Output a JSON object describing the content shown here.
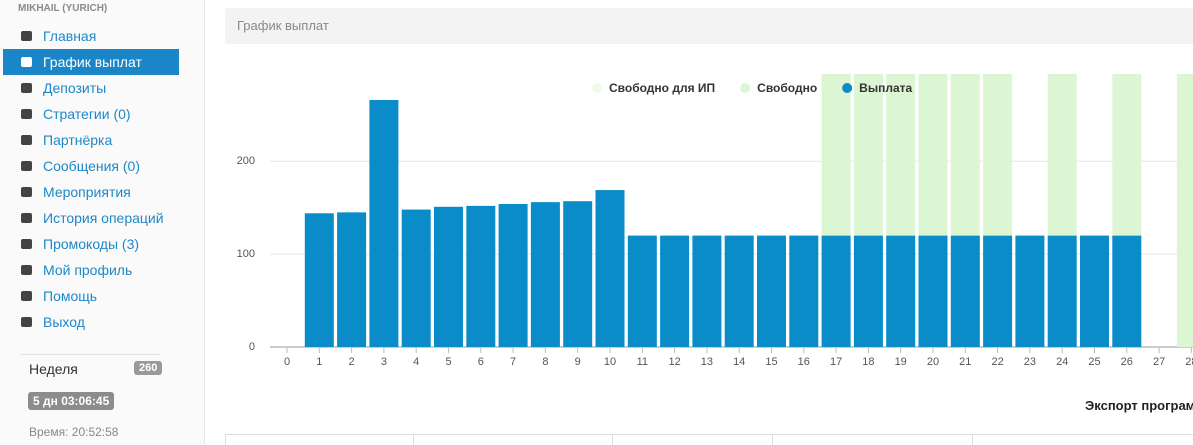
{
  "sidebar": {
    "user": "MIKHAIL (YURICH)",
    "menu": [
      {
        "label": "Главная",
        "active": false
      },
      {
        "label": "График выплат",
        "active": true
      },
      {
        "label": "Депозиты",
        "active": false
      },
      {
        "label": "Стратегии (0)",
        "active": false
      },
      {
        "label": "Партнёрка",
        "active": false
      },
      {
        "label": "Сообщения (0)",
        "active": false
      },
      {
        "label": "Мероприятия",
        "active": false
      },
      {
        "label": "История операций",
        "active": false
      },
      {
        "label": "Промокоды (3)",
        "active": false
      },
      {
        "label": "Мой профиль",
        "active": false
      },
      {
        "label": "Помощь",
        "active": false
      },
      {
        "label": "Выход",
        "active": false
      }
    ],
    "week": {
      "label": "Неделя",
      "value": 260
    },
    "timer": "5 дн 03:06:45",
    "time": "Время: 20:52:58"
  },
  "header": {
    "title": "График выплат"
  },
  "chart_data": {
    "type": "stacked-bar",
    "categories": [
      "0",
      "1",
      "2",
      "3",
      "4",
      "5",
      "6",
      "7",
      "8",
      "9",
      "10",
      "11",
      "12",
      "13",
      "14",
      "15",
      "16",
      "17",
      "18",
      "19",
      "20",
      "21",
      "22",
      "23",
      "24",
      "25",
      "26",
      "27",
      "28"
    ],
    "series": [
      {
        "name": "Свободно для ИП",
        "color": "#eefbea",
        "values": [
          null,
          null,
          null,
          null,
          null,
          null,
          null,
          null,
          null,
          null,
          null,
          null,
          null,
          null,
          null,
          null,
          null,
          null,
          null,
          null,
          null,
          null,
          null,
          null,
          null,
          null,
          null,
          null,
          null
        ]
      },
      {
        "name": "Свободно",
        "color": "#dcf6d4",
        "values": [
          null,
          null,
          null,
          null,
          null,
          null,
          null,
          null,
          null,
          null,
          null,
          null,
          null,
          null,
          null,
          null,
          null,
          174,
          174,
          174,
          174,
          174,
          174,
          null,
          174,
          null,
          174,
          null,
          294
        ]
      },
      {
        "name": "Выплата",
        "color": "#0a8cc8",
        "values": [
          null,
          144,
          145,
          266,
          148,
          151,
          152,
          154,
          156,
          157,
          169,
          120,
          120,
          120,
          120,
          120,
          120,
          120,
          120,
          120,
          120,
          120,
          120,
          120,
          120,
          120,
          120,
          null,
          null
        ]
      }
    ],
    "ylim": [
      0,
      294
    ],
    "yticks": [
      0,
      100,
      200
    ],
    "grid": true
  },
  "export": "Экспорт програм"
}
